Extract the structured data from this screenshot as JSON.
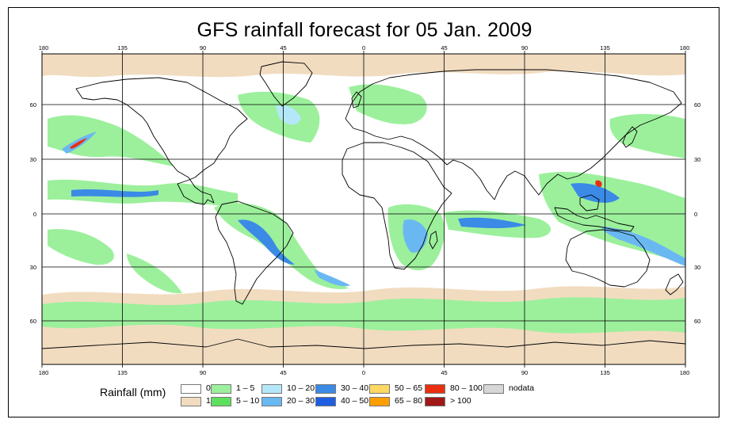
{
  "title": "GFS rainfall forecast for 05 Jan. 2009",
  "map": {
    "projection": "equirectangular",
    "lon_range": [
      -180,
      180
    ],
    "lat_range": [
      -90,
      90
    ],
    "lon_ticks_top": [
      "180",
      "135",
      "90",
      "45",
      "0",
      "45",
      "90",
      "135",
      "180"
    ],
    "lon_ticks_bottom": [
      "180",
      "135",
      "90",
      "45",
      "0",
      "45",
      "90",
      "135",
      "180"
    ],
    "lat_ticks_left": [
      "60",
      "30",
      "0",
      "30",
      "60"
    ],
    "lat_ticks_right": [
      "60",
      "30",
      "0",
      "30",
      "60"
    ],
    "ocean_color": "#ffffff",
    "grid_color": "#000000",
    "coastline_color": "#000000"
  },
  "legend": {
    "title": "Rainfall (mm)",
    "items": [
      {
        "label": "0",
        "color": "#ffffff"
      },
      {
        "label": "1",
        "color": "#f1dcc0"
      },
      {
        "label": "1 – 5",
        "color": "#9cf09c"
      },
      {
        "label": "5 – 10",
        "color": "#5ee05e"
      },
      {
        "label": "10 – 20",
        "color": "#b4e8f8"
      },
      {
        "label": "20 – 30",
        "color": "#6ab8f2"
      },
      {
        "label": "30 – 40",
        "color": "#3a8ae6"
      },
      {
        "label": "40 – 50",
        "color": "#1f5ee0"
      },
      {
        "label": "50 – 65",
        "color": "#ffd862"
      },
      {
        "label": "65 – 80",
        "color": "#ff9e00"
      },
      {
        "label": "80 – 100",
        "color": "#e83010"
      },
      {
        "label": "> 100",
        "color": "#a01818"
      },
      {
        "label": "nodata",
        "color": "#d7d7d7"
      }
    ]
  }
}
